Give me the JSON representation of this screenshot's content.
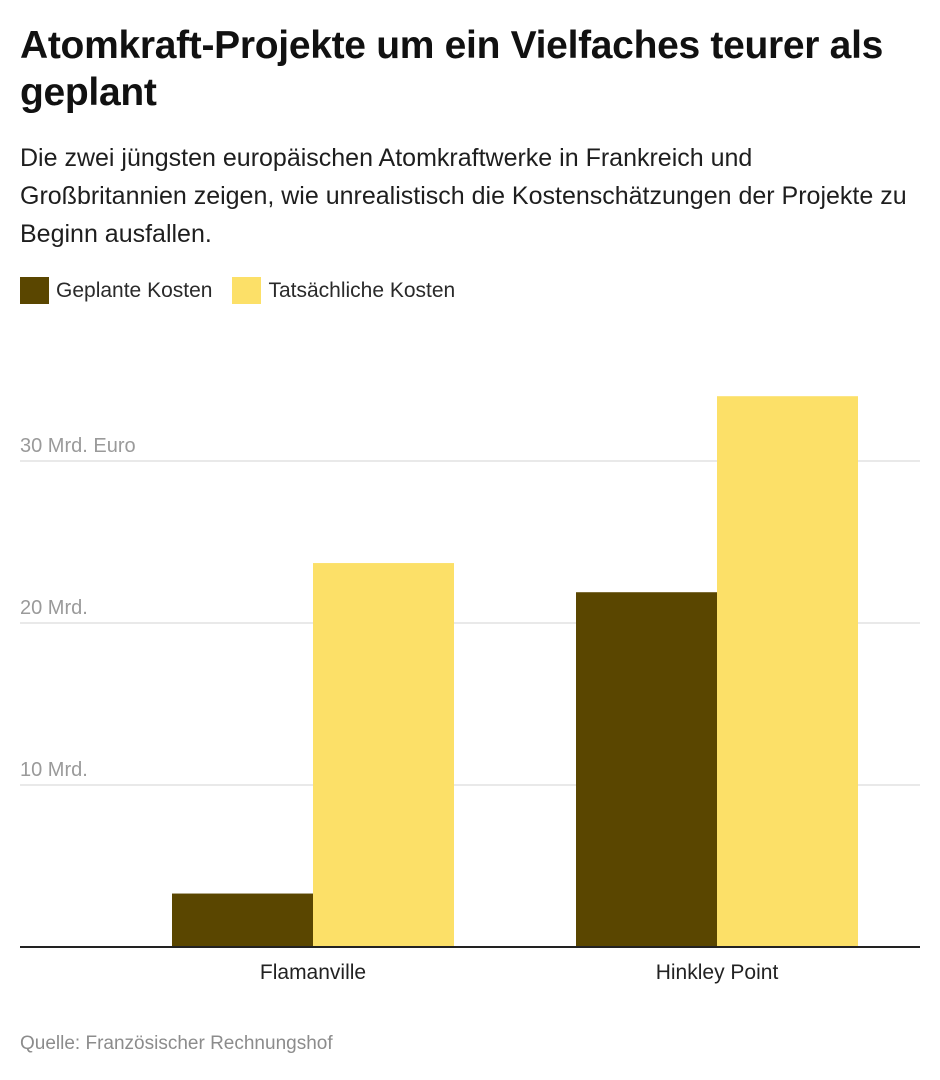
{
  "title": "Atomkraft-Projekte um ein Vielfaches teurer als geplant",
  "subtitle": "Die zwei jüngsten europäischen Atomkraftwerke in Frankreich und Großbritannien zeigen, wie unrealistisch die Kostenschätzungen der Projekte zu Beginn ausfallen.",
  "source": "Quelle: Französischer Rechnungshof",
  "colors": {
    "planned": "#5a4600",
    "actual": "#fce068",
    "grid": "#e2e2e2",
    "axis": "#222222"
  },
  "chart_data": {
    "type": "bar",
    "title": "Atomkraft-Projekte um ein Vielfaches teurer als geplant",
    "categories": [
      "Flamanville",
      "Hinkley Point"
    ],
    "series": [
      {
        "name": "Geplante Kosten",
        "values": [
          3.3,
          21.9
        ],
        "color": "#5a4600"
      },
      {
        "name": "Tatsächliche Kosten",
        "values": [
          23.7,
          34.0
        ],
        "color": "#fce068"
      }
    ],
    "ylim": [
      0,
      35
    ],
    "yticks": [
      {
        "value": 10,
        "label": "10 Mrd."
      },
      {
        "value": 20,
        "label": "20 Mrd."
      },
      {
        "value": 30,
        "label": "30 Mrd. Euro"
      }
    ],
    "grid": true,
    "legend": "top-left"
  }
}
